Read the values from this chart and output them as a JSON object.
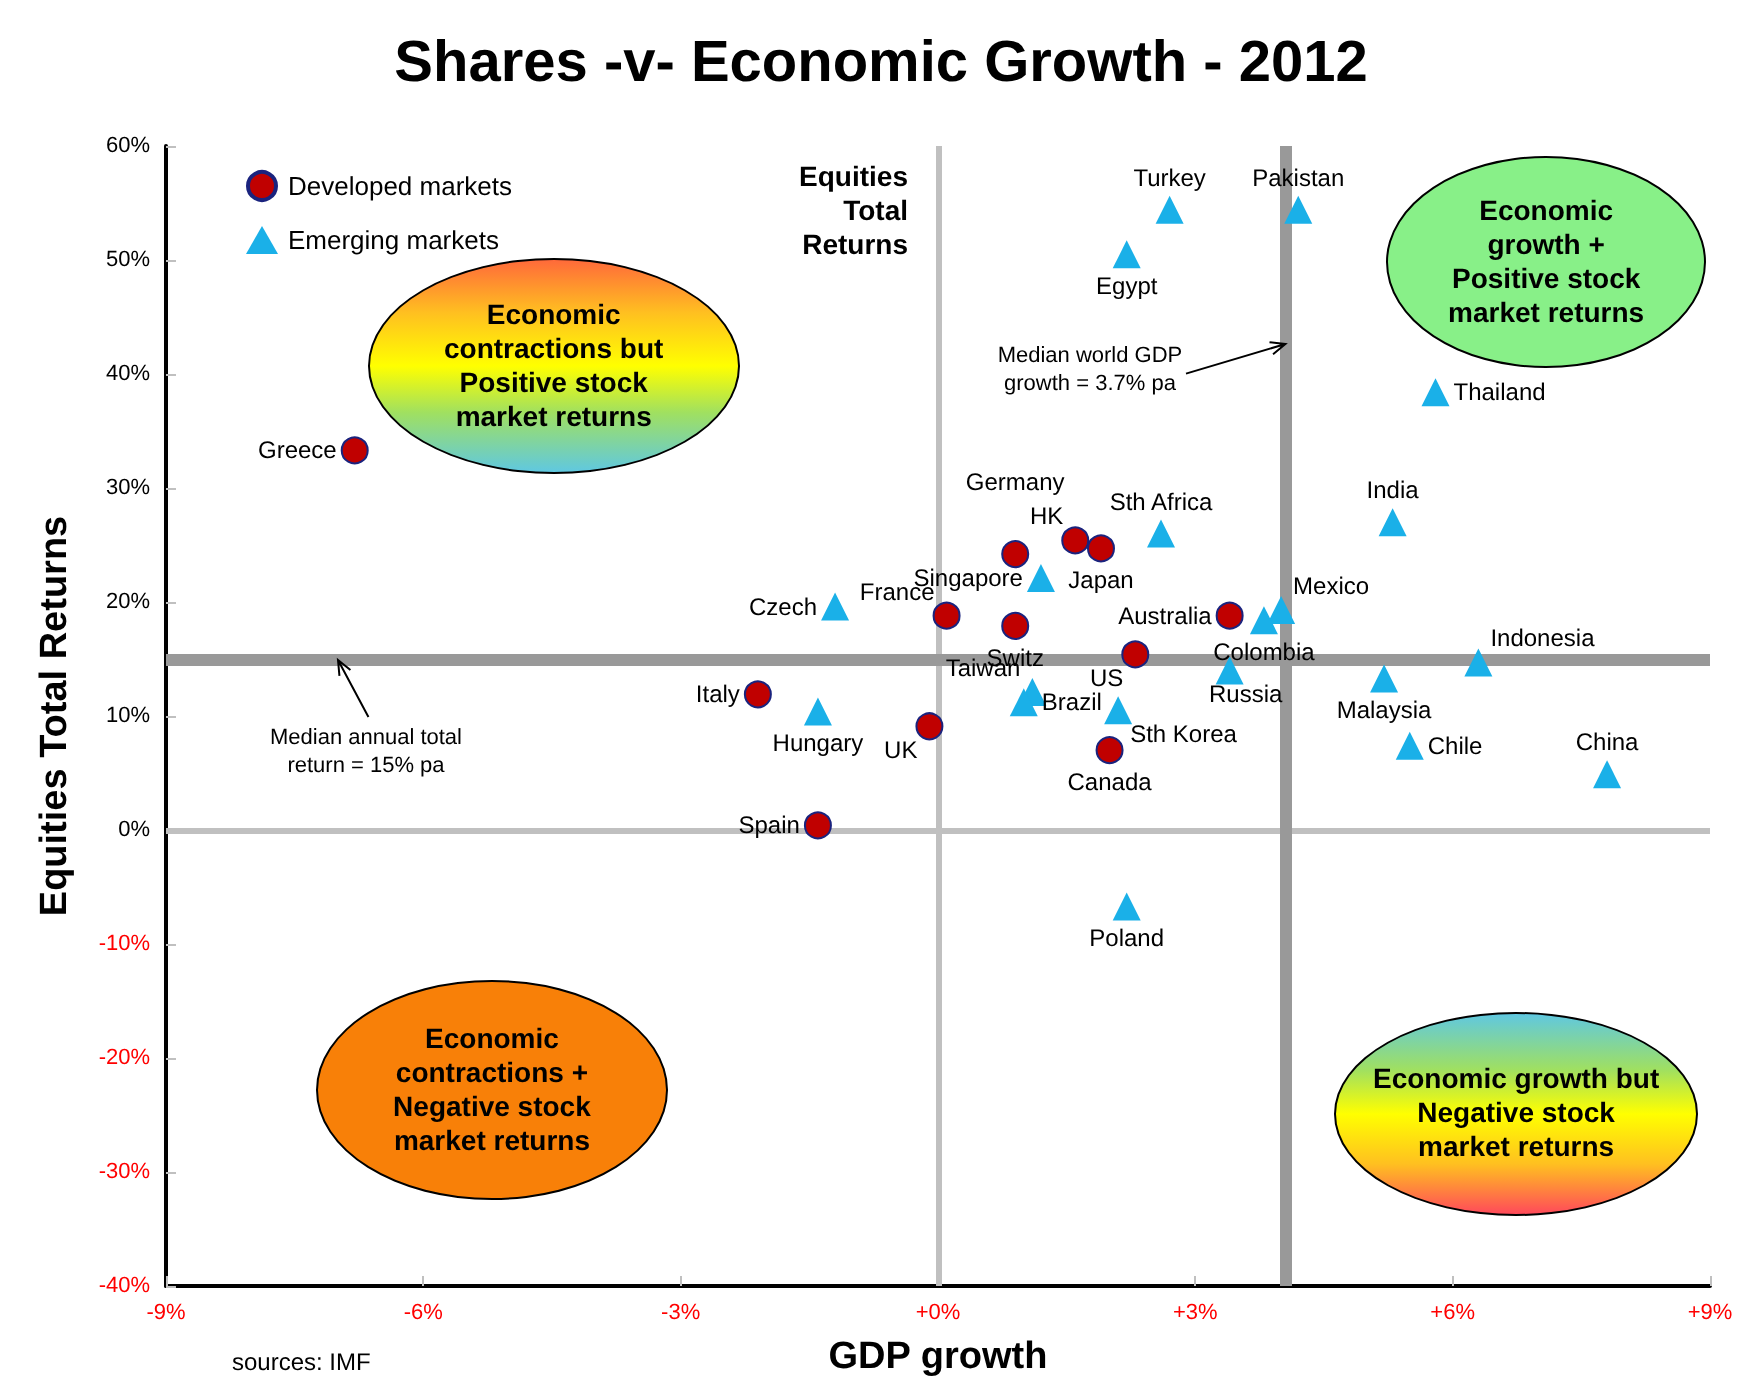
{
  "chart_data": {
    "type": "scatter",
    "title": "Shares -v- Economic Growth - 2012",
    "xlabel": "GDP growth",
    "ylabel": "Equities Total Returns",
    "series": [
      {
        "name": "Developed markets",
        "color": "#c00000",
        "marker": "circle",
        "x": [
          -6.8,
          -2.1,
          -1.4,
          -0.1,
          0.1,
          0.9,
          1.6,
          1.9,
          0.9,
          3.4,
          2.3,
          2.0
        ],
        "values": [
          33.3,
          11.9,
          0.4,
          9.1,
          18.8,
          24.2,
          25.4,
          24.7,
          17.9,
          18.8,
          15.4,
          7.0
        ]
      },
      {
        "name": "Emerging markets",
        "color": "#1ab0e8",
        "marker": "triangle",
        "x": [
          -1.2,
          -1.4,
          2.7,
          4.2,
          2.2,
          5.8,
          5.3,
          2.6,
          1.2,
          4.0,
          3.8,
          6.3,
          3.4,
          5.2,
          1.1,
          1.0,
          2.1,
          5.5,
          7.8,
          2.2
        ],
        "values": [
          19.6,
          10.4,
          54.4,
          54.4,
          50.5,
          38.4,
          27.0,
          26.0,
          22.1,
          19.3,
          18.4,
          14.7,
          14.0,
          13.3,
          12.1,
          11.2,
          10.5,
          7.4,
          4.9,
          -6.7
        ]
      }
    ],
    "xlim": [
      -9,
      9
    ],
    "xticks": [
      {
        "value": -9,
        "label": "-9%"
      },
      {
        "value": -6,
        "label": "-6%"
      },
      {
        "value": -3,
        "label": "-3%"
      },
      {
        "value": 0,
        "label": "+0%"
      },
      {
        "value": 3,
        "label": "+3%"
      },
      {
        "value": 6,
        "label": "+6%"
      },
      {
        "value": 9,
        "label": "+9%"
      }
    ],
    "ylim": [
      -40,
      60
    ],
    "yticks": [
      {
        "value": -40,
        "label": "-40%"
      },
      {
        "value": -30,
        "label": "-30%"
      },
      {
        "value": -20,
        "label": "-20%"
      },
      {
        "value": -10,
        "label": "-10%"
      },
      {
        "value": 0,
        "label": "0%"
      },
      {
        "value": 10,
        "label": "10%"
      },
      {
        "value": 20,
        "label": "20%"
      },
      {
        "value": 30,
        "label": "30%"
      },
      {
        "value": 40,
        "label": "40%"
      },
      {
        "value": 50,
        "label": "50%"
      },
      {
        "value": 60,
        "label": "60%"
      }
    ],
    "grid": false,
    "legend": "top left",
    "ref_lines": [
      {
        "axis": "x",
        "value": 0,
        "color": "#c0c0c0"
      },
      {
        "axis": "y",
        "value": 0,
        "color": "#c0c0c0"
      },
      {
        "axis": "x",
        "value": 4.05,
        "color": "#999999"
      },
      {
        "axis": "y",
        "value": 15,
        "color": "#999999"
      }
    ],
    "annotations": [
      {
        "text": "Greece",
        "x": -6.8,
        "y": 33.3
      },
      {
        "text": "Italy",
        "x": -2.1,
        "y": 11.9
      },
      {
        "text": "Spain",
        "x": -1.4,
        "y": 0.4
      },
      {
        "text": "UK",
        "x": -0.1,
        "y": 9.1
      },
      {
        "text": "France",
        "x": 0.1,
        "y": 18.8
      },
      {
        "text": "Germany",
        "x": 0.9,
        "y": 24.2
      },
      {
        "text": "HK",
        "x": 1.6,
        "y": 25.4
      },
      {
        "text": "Japan",
        "x": 1.9,
        "y": 24.7
      },
      {
        "text": "Switz",
        "x": 0.9,
        "y": 17.9
      },
      {
        "text": "Australia",
        "x": 3.4,
        "y": 18.8
      },
      {
        "text": "US",
        "x": 2.3,
        "y": 15.4
      },
      {
        "text": "Canada",
        "x": 2.0,
        "y": 7.0
      },
      {
        "text": "Czech",
        "x": -1.2,
        "y": 19.6
      },
      {
        "text": "Hungary",
        "x": -1.4,
        "y": 10.4
      },
      {
        "text": "Turkey",
        "x": 2.7,
        "y": 54.4
      },
      {
        "text": "Pakistan",
        "x": 4.2,
        "y": 54.4
      },
      {
        "text": "Egypt",
        "x": 2.2,
        "y": 50.5
      },
      {
        "text": "Thailand",
        "x": 5.8,
        "y": 38.4
      },
      {
        "text": "India",
        "x": 5.3,
        "y": 27.0
      },
      {
        "text": "Sth Africa",
        "x": 2.6,
        "y": 26.0
      },
      {
        "text": "Singapore",
        "x": 1.2,
        "y": 22.1
      },
      {
        "text": "Mexico",
        "x": 4.0,
        "y": 19.3
      },
      {
        "text": "Colombia",
        "x": 3.8,
        "y": 18.4
      },
      {
        "text": "Indonesia",
        "x": 6.3,
        "y": 14.7
      },
      {
        "text": "Russia",
        "x": 3.4,
        "y": 14.0
      },
      {
        "text": "Malaysia",
        "x": 5.2,
        "y": 13.3
      },
      {
        "text": "Taiwan",
        "x": 1.1,
        "y": 12.1
      },
      {
        "text": "Brazil",
        "x": 1.0,
        "y": 11.2
      },
      {
        "text": "Sth Korea",
        "x": 2.1,
        "y": 10.5
      },
      {
        "text": "Chile",
        "x": 5.5,
        "y": 7.4
      },
      {
        "text": "China",
        "x": 7.8,
        "y": 4.9
      },
      {
        "text": "Poland",
        "x": 2.2,
        "y": -6.7
      },
      "Economic contractions but Positive stock market returns",
      "Economic growth + Positive stock market returns",
      "Economic contractions + Negative stock market returns",
      "Economic growth but Negative stock market returns",
      "Equities Total Returns",
      {
        "text": "Median annual total return = 15% pa",
        "x": -7.0,
        "y": 15
      },
      {
        "text": "Median world GDP growth = 3.7% pa",
        "x": 4.05,
        "y": 42.6
      },
      "sources: IMF"
    ]
  }
}
